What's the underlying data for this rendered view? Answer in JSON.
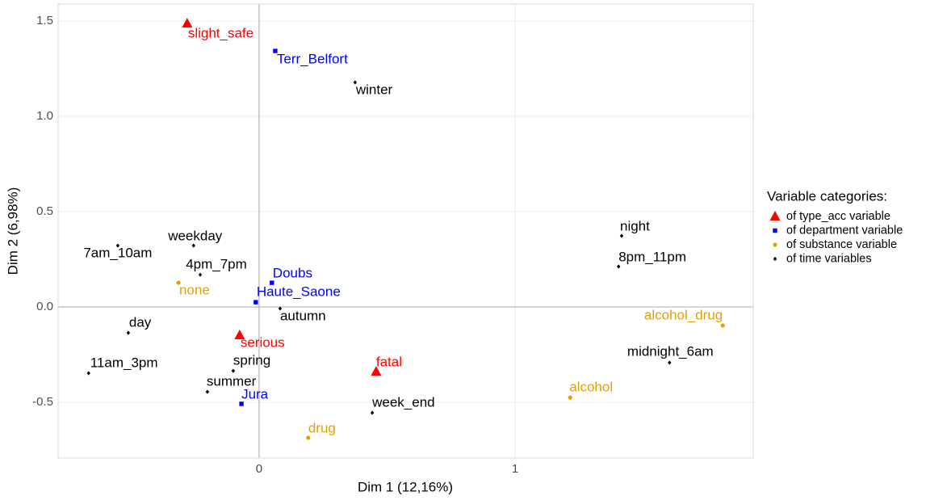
{
  "chart_data": {
    "type": "scatter",
    "x_label": "Dim 1 (12,16%)",
    "y_label": "Dim 2 (6,98%)",
    "xlim": [
      -0.785,
      1.93
    ],
    "ylim": [
      -0.792,
      1.589
    ],
    "xticks": [
      0,
      1
    ],
    "yticks": [
      -0.5,
      {
        "value": 0,
        "label": "0.0"
      },
      0.5,
      {
        "value": 1,
        "label": "1.0"
      },
      1.5
    ],
    "grid": true,
    "legend_title": "Variable categories:",
    "legend_position": "right",
    "series": [
      {
        "name": "of type_acc variable",
        "color": "#ff0000",
        "marker": "triangle",
        "labels": [
          "slight_safe",
          "serious",
          "fatal"
        ],
        "x": [
          -0.281,
          -0.076,
          0.457
        ],
        "values": [
          1.487,
          -0.148,
          -0.339
        ]
      },
      {
        "name": "of department variable",
        "color": "#0000ff",
        "marker": "square",
        "labels": [
          "Terr_Belfort",
          "Doubs",
          "Haute_Saone",
          "Jura"
        ],
        "x": [
          0.063,
          0.05,
          -0.013,
          -0.069
        ],
        "values": [
          1.343,
          0.127,
          0.025,
          -0.508
        ]
      },
      {
        "name": "of substance variable",
        "color": "#e69f00",
        "marker": "circle",
        "labels": [
          "none",
          "alcohol_drug",
          "alcohol",
          "drug"
        ],
        "x": [
          -0.315,
          1.811,
          1.215,
          0.192
        ],
        "values": [
          0.127,
          -0.097,
          -0.475,
          -0.686
        ]
      },
      {
        "name": "of time variables",
        "color": "#000000",
        "marker": "diamond",
        "labels": [
          "winter",
          "night",
          "8pm_11pm",
          "weekday",
          "7am_10am",
          "4pm_7pm",
          "autumn",
          "day",
          "11am_3pm",
          "spring",
          "summer",
          "midnight_6am",
          "week_end"
        ],
        "x": [
          0.375,
          1.416,
          1.404,
          -0.256,
          -0.552,
          -0.23,
          0.082,
          -0.511,
          -0.666,
          -0.101,
          -0.202,
          1.603,
          0.442
        ],
        "values": [
          1.178,
          0.373,
          0.212,
          0.322,
          0.322,
          0.169,
          -0.008,
          -0.136,
          -0.347,
          -0.335,
          -0.445,
          -0.292,
          -0.555
        ]
      }
    ]
  }
}
